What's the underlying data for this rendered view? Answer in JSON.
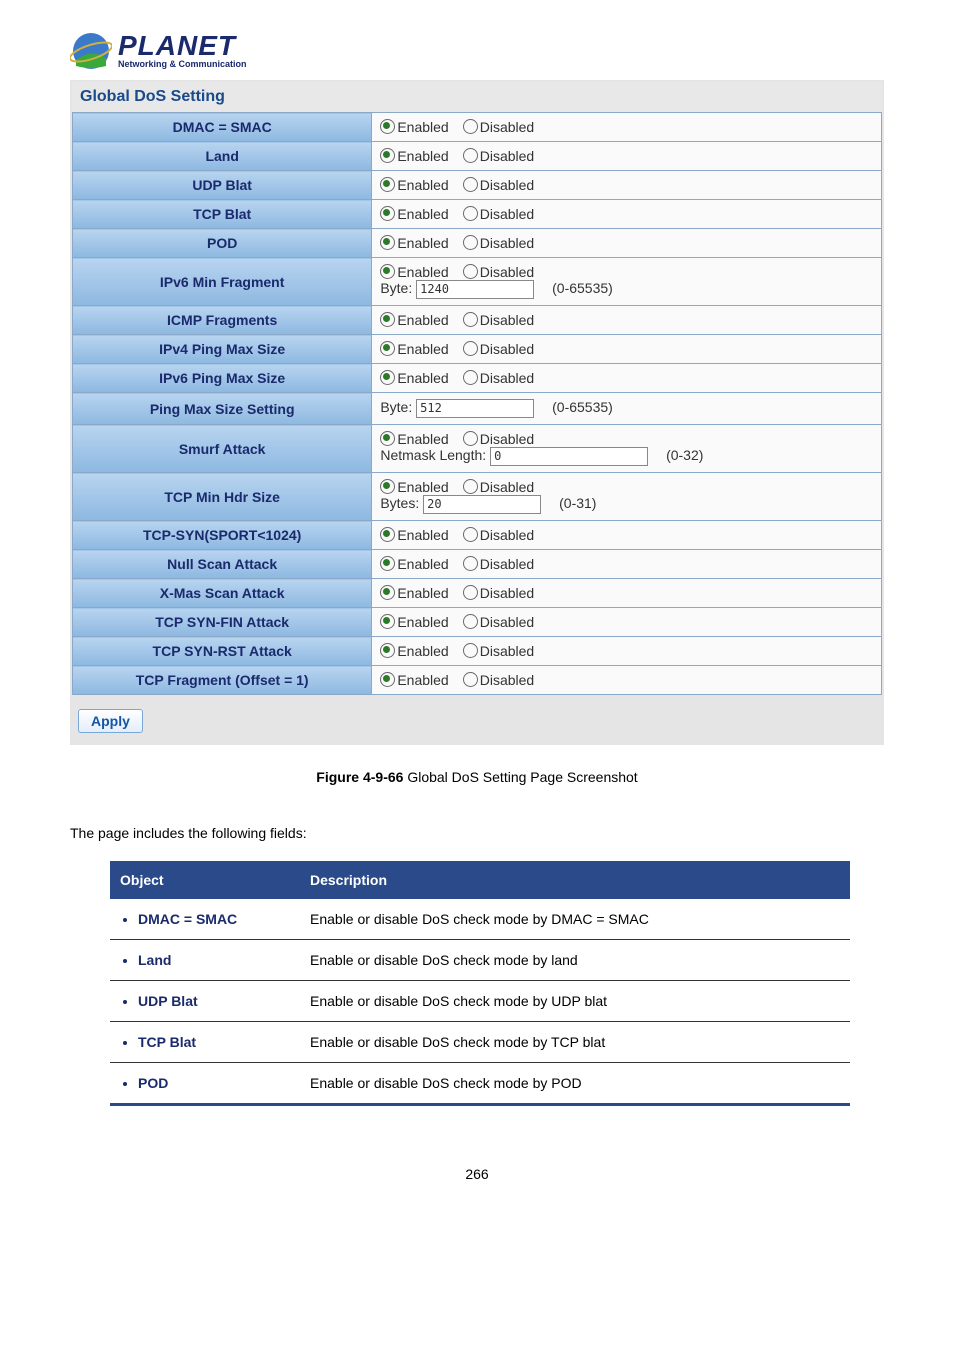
{
  "logo": {
    "brand": "PLANET",
    "tagline": "Networking & Communication"
  },
  "panel_title": "Global DoS Setting",
  "radio": {
    "enabled": "Enabled",
    "disabled": "Disabled"
  },
  "rows": [
    {
      "label": "DMAC = SMAC",
      "type": "radio"
    },
    {
      "label": "Land",
      "type": "radio"
    },
    {
      "label": "UDP Blat",
      "type": "radio"
    },
    {
      "label": "TCP Blat",
      "type": "radio"
    },
    {
      "label": "POD",
      "type": "radio"
    },
    {
      "label": "IPv6 Min Fragment",
      "type": "radio_input",
      "input_label": "Byte:",
      "input_value": "1240",
      "range": "(0-65535)"
    },
    {
      "label": "ICMP Fragments",
      "type": "radio"
    },
    {
      "label": "IPv4 Ping Max Size",
      "type": "radio"
    },
    {
      "label": "IPv6 Ping Max Size",
      "type": "radio"
    },
    {
      "label": "Ping Max Size Setting",
      "type": "input_only",
      "input_label": "Byte:",
      "input_value": "512",
      "range": "(0-65535)"
    },
    {
      "label": "Smurf Attack",
      "type": "radio_input",
      "input_label": "Netmask Length:",
      "input_value": "0",
      "range": "(0-32)",
      "wide_input": true
    },
    {
      "label": "TCP Min Hdr Size",
      "type": "radio_input",
      "input_label": "Bytes:",
      "input_value": "20",
      "range": "(0-31)"
    },
    {
      "label": "TCP-SYN(SPORT<1024)",
      "type": "radio"
    },
    {
      "label": "Null Scan Attack",
      "type": "radio"
    },
    {
      "label": "X-Mas Scan Attack",
      "type": "radio"
    },
    {
      "label": "TCP SYN-FIN Attack",
      "type": "radio"
    },
    {
      "label": "TCP SYN-RST Attack",
      "type": "radio"
    },
    {
      "label": "TCP Fragment (Offset = 1)",
      "type": "radio"
    }
  ],
  "apply_label": "Apply",
  "figure_label": "Figure 4-9-66",
  "figure_text": " Global DoS Setting Page Screenshot",
  "lead_text": "The page includes the following fields:",
  "fields_header": {
    "object": "Object",
    "description": "Description"
  },
  "fields": [
    {
      "obj": "DMAC = SMAC",
      "desc": "Enable or disable DoS check mode by DMAC = SMAC"
    },
    {
      "obj": "Land",
      "desc": "Enable or disable DoS check mode by land"
    },
    {
      "obj": "UDP Blat",
      "desc": "Enable or disable DoS check mode by UDP blat"
    },
    {
      "obj": "TCP Blat",
      "desc": "Enable or disable DoS check mode by TCP blat"
    },
    {
      "obj": "POD",
      "desc": "Enable or disable DoS check mode by POD"
    }
  ],
  "page_number": "266"
}
